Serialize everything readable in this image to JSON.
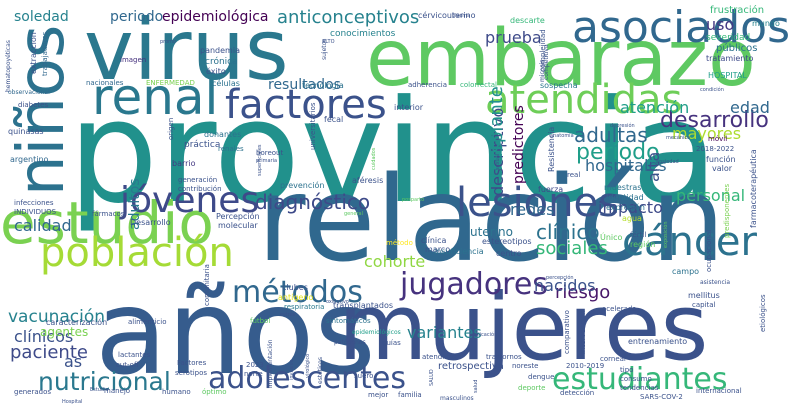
{
  "words": [
    {
      "text": "provincia",
      "color": "#21918c"
    },
    {
      "text": "relación",
      "color": "#30688e"
    },
    {
      "text": "años",
      "color": "#365c8d"
    },
    {
      "text": "mujeres",
      "color": "#3b528b"
    },
    {
      "text": "embarazo",
      "color": "#5ec962"
    },
    {
      "text": "virus",
      "color": "#2a788e"
    },
    {
      "text": "niños",
      "color": "#2c728e"
    },
    {
      "text": "estudio",
      "color": "#7ad151"
    },
    {
      "text": "asociados",
      "color": "#31688e"
    },
    {
      "text": "renal",
      "color": "#2a788e"
    },
    {
      "text": "factores",
      "color": "#3b528b"
    },
    {
      "text": "atendidas",
      "color": "#6ece58"
    },
    {
      "text": "jóvenes",
      "color": "#3e4a89"
    },
    {
      "text": "lesiones",
      "color": "#3b528b"
    },
    {
      "text": "población",
      "color": "#a5db36"
    },
    {
      "text": "cáncer",
      "color": "#2c728e"
    },
    {
      "text": "métodos",
      "color": "#31688e"
    },
    {
      "text": "jugadores",
      "color": "#46327e"
    },
    {
      "text": "adolescentes",
      "color": "#3b528b"
    },
    {
      "text": "estudiantes",
      "color": "#35b779"
    },
    {
      "text": "nutricional",
      "color": "#2a788e"
    },
    {
      "text": "anticonceptivos",
      "color": "#26828e"
    },
    {
      "text": "epidemiológica",
      "color": "#440154"
    },
    {
      "text": "período",
      "color": "#1f9e89"
    },
    {
      "text": "desarrollo",
      "color": "#46327e"
    },
    {
      "text": "diagnóstico",
      "color": "#3e4a89"
    },
    {
      "text": "adultas",
      "color": "#31688e"
    },
    {
      "text": "clínico",
      "color": "#2c728e"
    },
    {
      "text": "sociales",
      "color": "#35b779"
    },
    {
      "text": "riesgo",
      "color": "#48186a"
    },
    {
      "text": "paciente",
      "color": "#3e4a89"
    },
    {
      "text": "vacunación",
      "color": "#26828e"
    },
    {
      "text": "calidad",
      "color": "#31688e"
    },
    {
      "text": "cohorte",
      "color": "#90d743"
    },
    {
      "text": "variantes",
      "color": "#26828e"
    },
    {
      "text": "nacidos",
      "color": "#3b528b"
    },
    {
      "text": "impacto",
      "color": "#3e4a89"
    },
    {
      "text": "personal",
      "color": "#35b779"
    },
    {
      "text": "hospitales",
      "color": "#31688e"
    },
    {
      "text": "atención",
      "color": "#1f9e89"
    },
    {
      "text": "mayores",
      "color": "#addc30"
    },
    {
      "text": "edad",
      "color": "#31688e"
    },
    {
      "text": "prueba",
      "color": "#3e4a89"
    },
    {
      "text": "uso",
      "color": "#443983"
    },
    {
      "text": "soledad",
      "color": "#26828e"
    },
    {
      "text": "periodo",
      "color": "#31688e"
    },
    {
      "text": "adultos",
      "color": "#2a788e"
    },
    {
      "text": "clínicos",
      "color": "#3b528b"
    },
    {
      "text": "agentes",
      "color": "#7ad151"
    },
    {
      "text": "redes",
      "color": "#31688e"
    },
    {
      "text": "descriptivo",
      "color": "#3e4a89"
    },
    {
      "text": "trasplante",
      "color": "#21918c"
    },
    {
      "text": "predictores",
      "color": "#440154"
    },
    {
      "text": "resultados",
      "color": "#31688e"
    },
    {
      "text": "uterino",
      "color": "#2c728e"
    },
    {
      "text": "as",
      "color": "#3b528b"
    },
    {
      "text": "alta",
      "color": "#3b528b"
    },
    {
      "text": "conocimientos",
      "color": "#26828e"
    },
    {
      "text": "frustración",
      "color": "#35b779"
    },
    {
      "text": "mundo",
      "color": "#26828e"
    },
    {
      "text": "severidad",
      "color": "#35b779"
    },
    {
      "text": "públicos",
      "color": "#2c728e"
    },
    {
      "text": "tratamiento",
      "color": "#3e4a89"
    },
    {
      "text": "HOSPITAL",
      "color": "#1f9e89"
    },
    {
      "text": "cérvicouterino",
      "color": "#3b528b"
    },
    {
      "text": "descarte",
      "color": "#35b779"
    },
    {
      "text": "pandemia",
      "color": "#3b528b"
    },
    {
      "text": "crónica",
      "color": "#2c728e"
    },
    {
      "text": "éxito",
      "color": "#3b528b"
    },
    {
      "text": "imagen",
      "color": "#46327e"
    },
    {
      "text": "nacionales",
      "color": "#31688e"
    },
    {
      "text": "ENFERMEDAD",
      "color": "#7ad151"
    },
    {
      "text": "células",
      "color": "#2c728e"
    },
    {
      "text": "tecnología",
      "color": "#2c728e"
    },
    {
      "text": "adherencia",
      "color": "#3b528b"
    },
    {
      "text": "colorrectal",
      "color": "#35b779"
    },
    {
      "text": "sospecha",
      "color": "#2a788e"
    },
    {
      "text": "interior",
      "color": "#3b528b"
    },
    {
      "text": "fecal",
      "color": "#3b528b"
    },
    {
      "text": "móvil",
      "color": "#440154"
    },
    {
      "text": "2018-2022",
      "color": "#3b528b"
    },
    {
      "text": "donantes",
      "color": "#2c728e"
    },
    {
      "text": "práctica",
      "color": "#3b528b"
    },
    {
      "text": "renales",
      "color": "#2c728e"
    },
    {
      "text": "barrio",
      "color": "#443983"
    },
    {
      "text": "generación",
      "color": "#3b528b"
    },
    {
      "text": "contribución",
      "color": "#3b528b"
    },
    {
      "text": "prevención",
      "color": "#2c728e"
    },
    {
      "text": "aféresis",
      "color": "#3b528b"
    },
    {
      "text": "fuerza",
      "color": "#3e4a89"
    },
    {
      "text": "muestras",
      "color": "#2c728e"
    },
    {
      "text": "identidad",
      "color": "#2c728e"
    },
    {
      "text": "expresión",
      "color": "#2c728e"
    },
    {
      "text": "agua",
      "color": "#b5de2b"
    },
    {
      "text": "Resistencia",
      "color": "#3b528b"
    },
    {
      "text": "Desarrollo",
      "color": "#3b528b"
    },
    {
      "text": "Percepción",
      "color": "#3b528b"
    },
    {
      "text": "molecular",
      "color": "#3b528b"
    },
    {
      "text": "fármacos",
      "color": "#3b528b"
    },
    {
      "text": "infecciones",
      "color": "#3b528b"
    },
    {
      "text": "INDIVIDUOS",
      "color": "#3b528b"
    },
    {
      "text": "argentino",
      "color": "#31688e"
    },
    {
      "text": "diabetes",
      "color": "#3b528b"
    },
    {
      "text": "quinasas",
      "color": "#3b528b"
    },
    {
      "text": "observacional",
      "color": "#31688e"
    },
    {
      "text": "extracción",
      "color": "#3b528b"
    },
    {
      "text": "trabajadores",
      "color": "#31688e"
    },
    {
      "text": "hematopoyéticas",
      "color": "#3b528b"
    },
    {
      "text": "clubes",
      "color": "#3b528b"
    },
    {
      "text": "antígeno",
      "color": "#e5e419"
    },
    {
      "text": "respiratoria",
      "color": "#2a788e"
    },
    {
      "text": "transplantados",
      "color": "#3b528b"
    },
    {
      "text": "clínica",
      "color": "#3b528b"
    },
    {
      "text": "marco",
      "color": "#3b528b"
    },
    {
      "text": "insuficiencia",
      "color": "#2c728e"
    },
    {
      "text": "estereotipos",
      "color": "#3b528b"
    },
    {
      "text": "centro",
      "color": "#3b528b"
    },
    {
      "text": "método",
      "color": "#fde725"
    },
    {
      "text": "Único",
      "color": "#5ec962"
    },
    {
      "text": "fértil",
      "color": "#3b528b"
    },
    {
      "text": "región",
      "color": "#5ec962"
    },
    {
      "text": "campo",
      "color": "#2c728e"
    },
    {
      "text": "acelerada",
      "color": "#3b528b"
    },
    {
      "text": "asistencia",
      "color": "#3b528b"
    },
    {
      "text": "mellitus",
      "color": "#3b528b"
    },
    {
      "text": "capital",
      "color": "#3b528b"
    },
    {
      "text": "ocupacional",
      "color": "#3b528b"
    },
    {
      "text": "predisponentes",
      "color": "#7ad151"
    },
    {
      "text": "farmacoterapéutica",
      "color": "#3b528b"
    },
    {
      "text": "función",
      "color": "#3b528b"
    },
    {
      "text": "valor",
      "color": "#3b528b"
    },
    {
      "text": "sintomáticos",
      "color": "#2c728e"
    },
    {
      "text": "caracterización",
      "color": "#3b528b"
    },
    {
      "text": "alimenticio",
      "color": "#3b528b"
    },
    {
      "text": "epidemiológicos",
      "color": "#1f9e89"
    },
    {
      "text": "patógenos",
      "color": "#3b528b"
    },
    {
      "text": "guías",
      "color": "#3b528b"
    },
    {
      "text": "atendidos",
      "color": "#3b528b"
    },
    {
      "text": "trastornos",
      "color": "#3b528b"
    },
    {
      "text": "lactantes",
      "color": "#3b528b"
    },
    {
      "text": "cut-off",
      "color": "#3b528b"
    },
    {
      "text": "serotipos",
      "color": "#3b528b"
    },
    {
      "text": "2023",
      "color": "#3b528b"
    },
    {
      "text": "norte",
      "color": "#3b528b"
    },
    {
      "text": "implementación",
      "color": "#3b528b"
    },
    {
      "text": "suero",
      "color": "#3b528b"
    },
    {
      "text": "estéticos",
      "color": "#3b528b"
    },
    {
      "text": "noreste",
      "color": "#3b528b"
    },
    {
      "text": "corneal",
      "color": "#3b528b"
    },
    {
      "text": "entrenamiento",
      "color": "#3b528b"
    },
    {
      "text": "tipo",
      "color": "#3b528b"
    },
    {
      "text": "consumo",
      "color": "#3b528b"
    },
    {
      "text": "tendencias",
      "color": "#3b528b"
    },
    {
      "text": "2010-2019",
      "color": "#3b528b"
    },
    {
      "text": "dengue",
      "color": "#3b528b"
    },
    {
      "text": "deporte",
      "color": "#5ec962"
    },
    {
      "text": "detección",
      "color": "#3b528b"
    },
    {
      "text": "SARS-COV-2",
      "color": "#3b528b"
    },
    {
      "text": "internacional",
      "color": "#3b528b"
    },
    {
      "text": "etiológicos",
      "color": "#3b528b"
    },
    {
      "text": "generados",
      "color": "#3b528b"
    },
    {
      "text": "humano",
      "color": "#3b528b"
    },
    {
      "text": "óptimo",
      "color": "#5ec962"
    },
    {
      "text": "mejor",
      "color": "#3b528b"
    },
    {
      "text": "familia",
      "color": "#3b528b"
    },
    {
      "text": "masculinos",
      "color": "#3b528b"
    },
    {
      "text": "Factores",
      "color": "#3b528b"
    },
    {
      "text": "comunitaria",
      "color": "#3b528b"
    },
    {
      "text": "fútbol",
      "color": "#5ec962"
    },
    {
      "text": "retrospectiva",
      "color": "#3b528b"
    },
    {
      "text": "comparativo",
      "color": "#3b528b"
    },
    {
      "text": "intervención",
      "color": "#3b528b"
    },
    {
      "text": "manejo",
      "color": "#3b528b"
    },
    {
      "text": "invasivo",
      "color": "#3b528b"
    },
    {
      "text": "virológico",
      "color": "#3b528b"
    },
    {
      "text": "universitarios",
      "color": "#3b528b"
    },
    {
      "text": "origen",
      "color": "#3b528b"
    },
    {
      "text": "superficiales",
      "color": "#3b528b"
    },
    {
      "text": "boreout",
      "color": "#3b528b"
    },
    {
      "text": "primaria",
      "color": "#3b528b"
    },
    {
      "text": "competitivo",
      "color": "#3b528b"
    },
    {
      "text": "complejidad",
      "color": "#3b528b"
    },
    {
      "text": "micosis",
      "color": "#3b528b"
    },
    {
      "text": "sujetos",
      "color": "#3b528b"
    },
    {
      "text": "cuidados",
      "color": "#5ec962"
    },
    {
      "text": "sexual",
      "color": "#3b528b"
    },
    {
      "text": "posparto",
      "color": "#5ec962"
    },
    {
      "text": "real",
      "color": "#3b528b"
    },
    {
      "text": "condición",
      "color": "#3b528b"
    },
    {
      "text": "depresión",
      "color": "#3b528b"
    },
    {
      "text": "exposición",
      "color": "#5ec962"
    },
    {
      "text": "oxidativo",
      "color": "#3b528b"
    },
    {
      "text": "promo",
      "color": "#3b528b"
    },
    {
      "text": "ALTO",
      "color": "#3b528b"
    },
    {
      "text": "general",
      "color": "#5ec962"
    },
    {
      "text": "aplicación",
      "color": "#3b528b"
    },
    {
      "text": "SALUD",
      "color": "#3b528b"
    },
    {
      "text": "Hospital",
      "color": "#3b528b"
    },
    {
      "text": "salud",
      "color": "#3b528b"
    },
    {
      "text": "Estudio",
      "color": "#3b528b"
    },
    {
      "text": "estrés",
      "color": "#3b528b"
    },
    {
      "text": "anatomía",
      "color": "#3b528b"
    },
    {
      "text": "plasma",
      "color": "#3b528b"
    },
    {
      "text": "mecánica",
      "color": "#3b528b"
    },
    {
      "text": "ansiedad",
      "color": "#3b528b"
    },
    {
      "text": "percepción",
      "color": "#3b528b"
    }
  ]
}
